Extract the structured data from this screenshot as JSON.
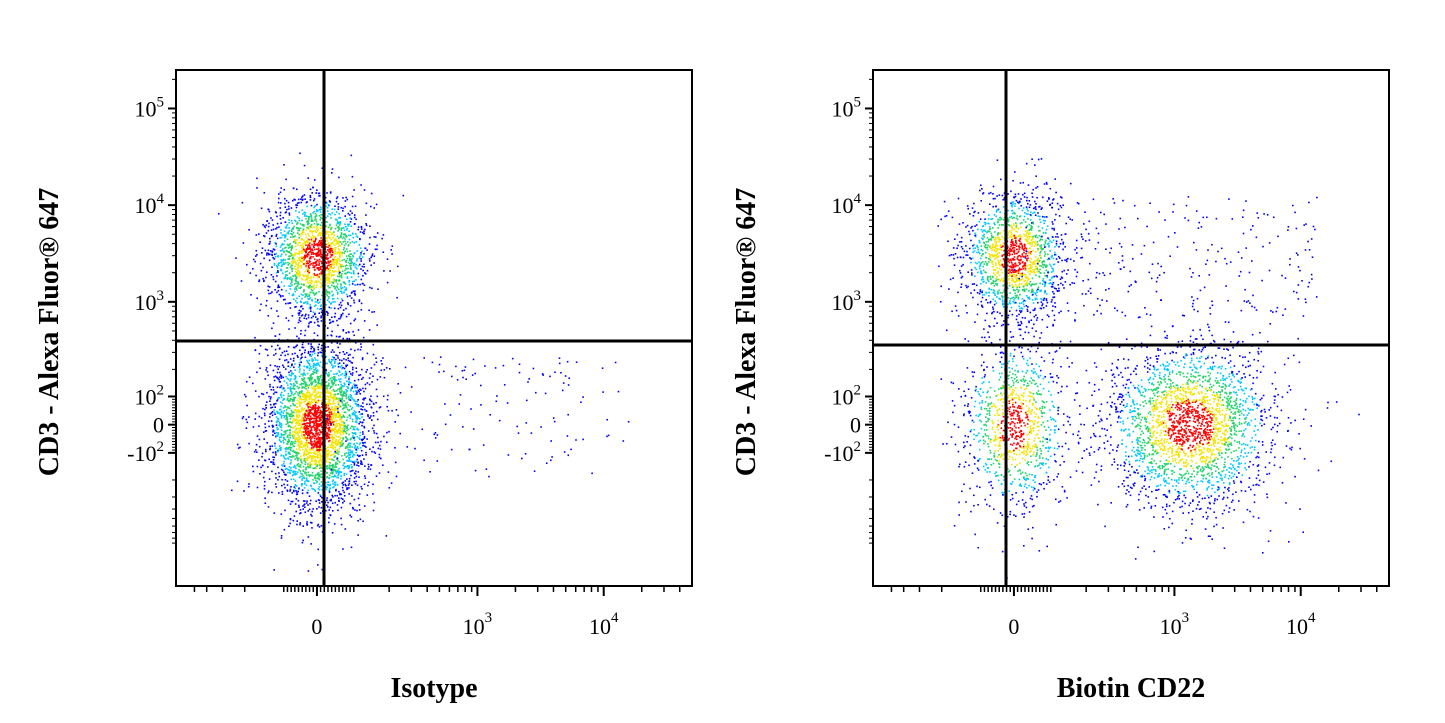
{
  "chart_data": [
    {
      "type": "scatter",
      "style": "flow-cytometry density dot plot",
      "xlabel": "Isotype",
      "ylabel": "CD3 - Alexa Fluor® 647",
      "x_scale": "biexponential",
      "y_scale": "biexponential",
      "x_tick_labels": [
        {
          "base": "0",
          "exp": ""
        },
        {
          "base": "10",
          "exp": "3"
        },
        {
          "base": "10",
          "exp": "4"
        }
      ],
      "y_tick_labels": [
        {
          "base": "10",
          "exp": "5"
        },
        {
          "base": "10",
          "exp": "4"
        },
        {
          "base": "10",
          "exp": "3"
        },
        {
          "base": "10",
          "exp": "2"
        },
        {
          "base": "0",
          "exp": ""
        },
        {
          "base": "-10",
          "exp": "2"
        }
      ],
      "quadrant_gate": {
        "x": 150,
        "y": 400
      },
      "populations": [
        {
          "name_hint": "CD3+ T cells",
          "x_center": 0,
          "y_center": 3000,
          "relative_count": 0.35
        },
        {
          "name_hint": "CD3- cells",
          "x_center": 0,
          "y_center": 0,
          "relative_count": 0.62
        },
        {
          "name_hint": "scattered events",
          "x_center": 1000,
          "y_center": 30,
          "relative_count": 0.03
        }
      ],
      "seed": 7
    },
    {
      "type": "scatter",
      "style": "flow-cytometry density dot plot",
      "xlabel": "Biotin CD22",
      "ylabel": "CD3 - Alexa Fluor® 647",
      "x_scale": "biexponential",
      "y_scale": "biexponential",
      "x_tick_labels": [
        {
          "base": "0",
          "exp": ""
        },
        {
          "base": "10",
          "exp": "3"
        },
        {
          "base": "10",
          "exp": "4"
        }
      ],
      "y_tick_labels": [
        {
          "base": "10",
          "exp": "5"
        },
        {
          "base": "10",
          "exp": "4"
        },
        {
          "base": "10",
          "exp": "3"
        },
        {
          "base": "10",
          "exp": "2"
        },
        {
          "base": "0",
          "exp": ""
        },
        {
          "base": "-10",
          "exp": "2"
        }
      ],
      "quadrant_gate": {
        "x": 150,
        "y": 400
      },
      "populations": [
        {
          "name_hint": "CD3+ CD22- T cells",
          "x_center": 0,
          "y_center": 3000,
          "relative_count": 0.28
        },
        {
          "name_hint": "CD3- CD22- cells",
          "x_center": 0,
          "y_center": 0,
          "relative_count": 0.2
        },
        {
          "name_hint": "CD3- CD22+ B cells",
          "x_center": 1300,
          "y_center": 0,
          "relative_count": 0.47
        },
        {
          "name_hint": "CD3+ CD22+ sparse",
          "x_center": 800,
          "y_center": 3000,
          "relative_count": 0.05
        }
      ],
      "seed": 11
    }
  ],
  "colors": {
    "density_low": "#0000ff",
    "density_mid_low": "#00c8ff",
    "density_mid": "#22d36b",
    "density_mid_high": "#f2e500",
    "density_high": "#ff0000",
    "axis": "#000000"
  }
}
